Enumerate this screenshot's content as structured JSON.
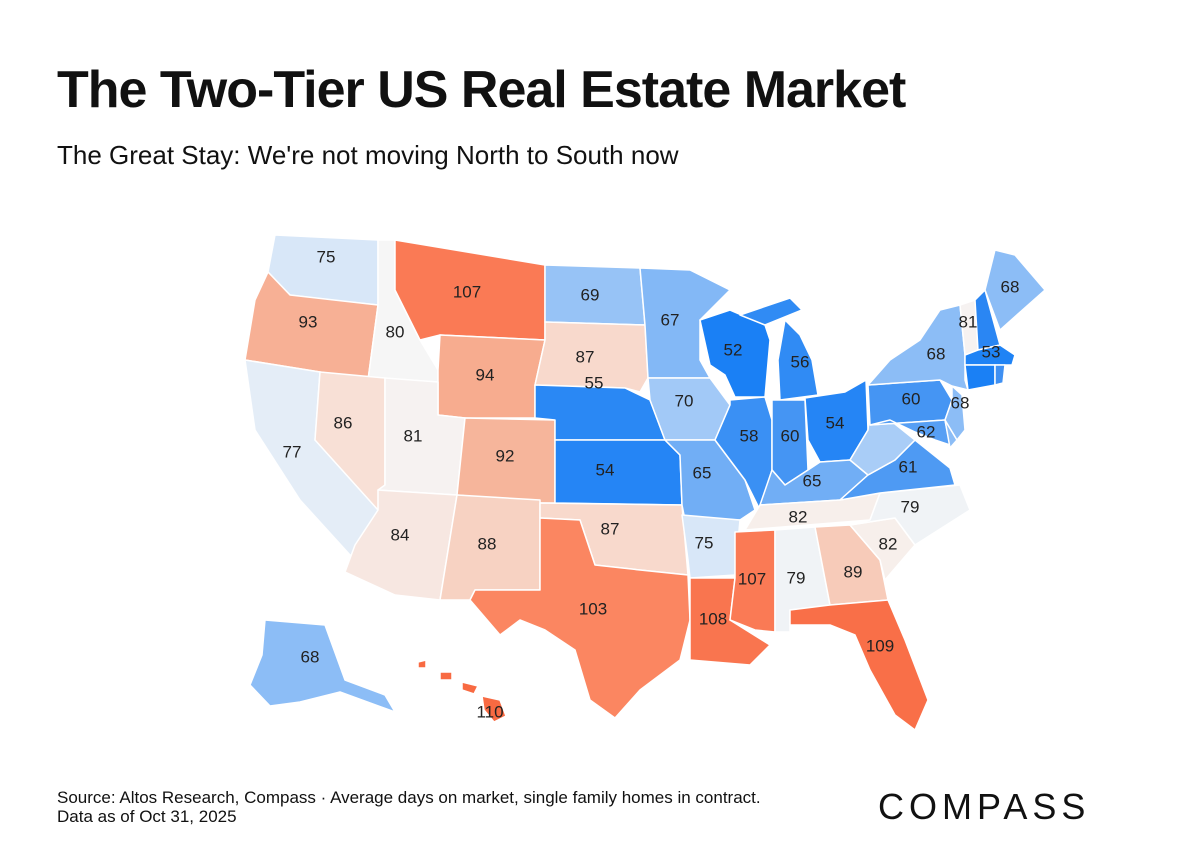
{
  "header": {
    "title": "The Two-Tier US Real Estate Market",
    "subtitle": "The Great Stay: We're not moving North to South now"
  },
  "footer": {
    "source": "Source: Altos Research, Compass · Average days on market, single family homes in contract.",
    "date": "Data as of Oct 31, 2025",
    "logo": "COMPASS"
  },
  "map_data": {
    "metric": "Average days on market",
    "color_scale": [
      {
        "v": 52,
        "c": "#1a80f5"
      },
      {
        "v": 60,
        "c": "#4595f3"
      },
      {
        "v": 68,
        "c": "#8cbdf6"
      },
      {
        "v": 75,
        "c": "#d8e7f8"
      },
      {
        "v": 80,
        "c": "#f6f6f6"
      },
      {
        "v": 86,
        "c": "#f8e0d6"
      },
      {
        "v": 92,
        "c": "#f6b59b"
      },
      {
        "v": 100,
        "c": "#fb8f6a"
      },
      {
        "v": 107,
        "c": "#fa7a55"
      },
      {
        "v": 110,
        "c": "#f86a42"
      }
    ],
    "states": [
      {
        "id": "WA",
        "value": 75
      },
      {
        "id": "OR",
        "value": 93
      },
      {
        "id": "ID",
        "value": 80
      },
      {
        "id": "MT",
        "value": 107
      },
      {
        "id": "WY",
        "value": 94
      },
      {
        "id": "CA",
        "value": 77
      },
      {
        "id": "NV",
        "value": 86
      },
      {
        "id": "UT",
        "value": 81
      },
      {
        "id": "CO",
        "value": 92
      },
      {
        "id": "AZ",
        "value": 84
      },
      {
        "id": "NM",
        "value": 88
      },
      {
        "id": "ND",
        "value": 69
      },
      {
        "id": "SD",
        "value": 87
      },
      {
        "id": "NE",
        "value": 55
      },
      {
        "id": "KS",
        "value": 54
      },
      {
        "id": "OK",
        "value": 87
      },
      {
        "id": "TX",
        "value": 103
      },
      {
        "id": "MN",
        "value": 67
      },
      {
        "id": "IA",
        "value": 70
      },
      {
        "id": "MO",
        "value": 65
      },
      {
        "id": "AR",
        "value": 75
      },
      {
        "id": "LA",
        "value": 108
      },
      {
        "id": "WI",
        "value": 52
      },
      {
        "id": "IL",
        "value": 58
      },
      {
        "id": "MI",
        "value": 56
      },
      {
        "id": "IN",
        "value": 60
      },
      {
        "id": "OH",
        "value": 54
      },
      {
        "id": "KY",
        "value": 65
      },
      {
        "id": "TN",
        "value": 82
      },
      {
        "id": "MS",
        "value": 107
      },
      {
        "id": "AL",
        "value": 79
      },
      {
        "id": "GA",
        "value": 89
      },
      {
        "id": "FL",
        "value": 109
      },
      {
        "id": "SC",
        "value": 82
      },
      {
        "id": "NC",
        "value": 79
      },
      {
        "id": "VA",
        "value": 61
      },
      {
        "id": "WV",
        "value": null,
        "fill": "#a9cdf7"
      },
      {
        "id": "PA",
        "value": 60
      },
      {
        "id": "MD",
        "value": 62
      },
      {
        "id": "DE",
        "value": null,
        "fill": "#8cbdf6"
      },
      {
        "id": "NJ",
        "value": 68
      },
      {
        "id": "NY",
        "value": 68
      },
      {
        "id": "VT",
        "value": 81
      },
      {
        "id": "NH",
        "value": null,
        "fill": "#2a86f3"
      },
      {
        "id": "ME",
        "value": 68
      },
      {
        "id": "MA",
        "value": 53
      },
      {
        "id": "CT",
        "value": null,
        "fill": "#1a80f5"
      },
      {
        "id": "RI",
        "value": null,
        "fill": "#3f90f2"
      },
      {
        "id": "AK",
        "value": 68
      },
      {
        "id": "HI",
        "value": 110
      }
    ]
  }
}
